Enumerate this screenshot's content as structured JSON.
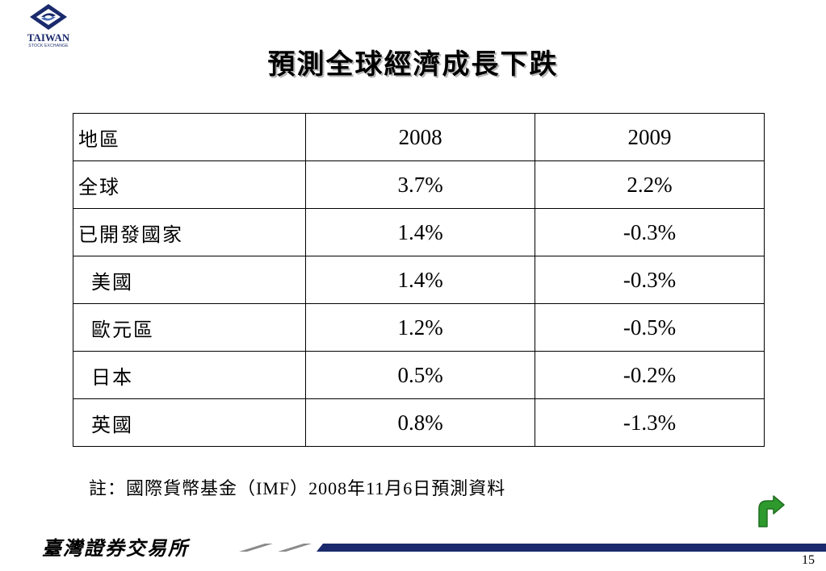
{
  "logo": {
    "name": "TAIWAN",
    "subtitle": "STOCK EXCHANGE",
    "colors": {
      "primary": "#1a2a6c",
      "accent": "#4a6bb5"
    }
  },
  "title": "預測全球經濟成長下跌",
  "table": {
    "header": [
      "地區",
      "2008",
      "2009"
    ],
    "rows": [
      {
        "region": "全球",
        "y2008": "3.7%",
        "y2009": "2.2%"
      },
      {
        "region": "已開發國家",
        "y2008": "1.4%",
        "y2009": "-0.3%"
      },
      {
        "region": "美國",
        "y2008": "1.4%",
        "y2009": "-0.3%"
      },
      {
        "region": "歐元區",
        "y2008": "1.2%",
        "y2009": "-0.5%"
      },
      {
        "region": "日本",
        "y2008": "0.5%",
        "y2009": "-0.2%"
      },
      {
        "region": "英國",
        "y2008": "0.8%",
        "y2009": "-1.3%"
      }
    ]
  },
  "note": "註：國際貨幣基金（IMF）2008年11月6日預測資料",
  "nav": {
    "return_icon": "return-arrow-icon",
    "color": "#2e9a2e"
  },
  "footer": {
    "brand": "臺灣證券交易所",
    "page_number": "15",
    "line_colors": [
      "#8a8a8a",
      "#1a2a6c"
    ]
  }
}
